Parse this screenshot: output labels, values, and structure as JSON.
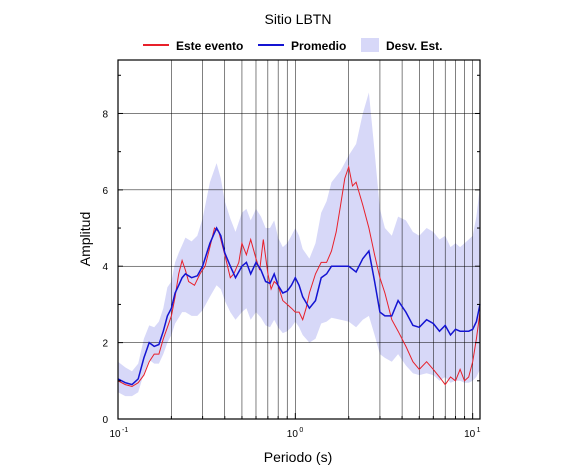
{
  "chart_data": {
    "type": "line",
    "title": "Sitio LBTN",
    "xlabel": "Periodo (s)",
    "ylabel": "Amplitud",
    "x_scale": "log",
    "xlim": [
      0.1,
      11
    ],
    "ylim": [
      0,
      9.4
    ],
    "grid": true,
    "legend_position": "top",
    "x_ticks": [
      {
        "base": "10",
        "exp": "-1"
      },
      {
        "base": "10",
        "exp": "0"
      },
      {
        "base": "10",
        "exp": "1"
      }
    ],
    "y_ticks": [
      "0",
      "2",
      "4",
      "6",
      "8"
    ],
    "series": [
      {
        "name": "Este evento",
        "color": "#e8202a",
        "points": [
          [
            0.1,
            1.0
          ],
          [
            0.11,
            0.9
          ],
          [
            0.12,
            0.85
          ],
          [
            0.13,
            0.95
          ],
          [
            0.14,
            1.15
          ],
          [
            0.15,
            1.5
          ],
          [
            0.16,
            1.7
          ],
          [
            0.17,
            1.7
          ],
          [
            0.18,
            2.1
          ],
          [
            0.19,
            2.4
          ],
          [
            0.2,
            2.7
          ],
          [
            0.21,
            3.2
          ],
          [
            0.22,
            3.8
          ],
          [
            0.23,
            4.15
          ],
          [
            0.24,
            3.9
          ],
          [
            0.25,
            3.6
          ],
          [
            0.27,
            3.5
          ],
          [
            0.29,
            3.8
          ],
          [
            0.31,
            4.0
          ],
          [
            0.33,
            4.5
          ],
          [
            0.35,
            5.0
          ],
          [
            0.37,
            4.9
          ],
          [
            0.4,
            4.3
          ],
          [
            0.43,
            3.7
          ],
          [
            0.45,
            3.8
          ],
          [
            0.48,
            4.1
          ],
          [
            0.5,
            4.6
          ],
          [
            0.53,
            4.3
          ],
          [
            0.56,
            4.7
          ],
          [
            0.6,
            4.2
          ],
          [
            0.63,
            3.9
          ],
          [
            0.66,
            4.7
          ],
          [
            0.7,
            3.8
          ],
          [
            0.73,
            3.4
          ],
          [
            0.76,
            3.6
          ],
          [
            0.8,
            3.5
          ],
          [
            0.85,
            3.1
          ],
          [
            0.9,
            3.0
          ],
          [
            0.95,
            2.9
          ],
          [
            1.0,
            2.8
          ],
          [
            1.05,
            2.8
          ],
          [
            1.1,
            2.6
          ],
          [
            1.15,
            2.9
          ],
          [
            1.2,
            3.3
          ],
          [
            1.3,
            3.8
          ],
          [
            1.4,
            4.1
          ],
          [
            1.5,
            4.1
          ],
          [
            1.6,
            4.4
          ],
          [
            1.7,
            4.9
          ],
          [
            1.8,
            5.6
          ],
          [
            1.9,
            6.3
          ],
          [
            2.0,
            6.6
          ],
          [
            2.1,
            6.1
          ],
          [
            2.2,
            6.2
          ],
          [
            2.4,
            5.6
          ],
          [
            2.6,
            5.0
          ],
          [
            2.8,
            4.3
          ],
          [
            3.0,
            3.7
          ],
          [
            3.2,
            3.3
          ],
          [
            3.5,
            2.6
          ],
          [
            3.8,
            2.3
          ],
          [
            4.2,
            1.9
          ],
          [
            4.6,
            1.5
          ],
          [
            5.0,
            1.3
          ],
          [
            5.5,
            1.5
          ],
          [
            6.0,
            1.3
          ],
          [
            6.5,
            1.1
          ],
          [
            7.0,
            0.9
          ],
          [
            7.5,
            1.1
          ],
          [
            8.0,
            1.0
          ],
          [
            8.5,
            1.3
          ],
          [
            9.0,
            1.0
          ],
          [
            9.5,
            1.1
          ],
          [
            10.0,
            1.5
          ],
          [
            10.5,
            2.1
          ],
          [
            11.0,
            2.8
          ]
        ]
      },
      {
        "name": "Promedio",
        "color": "#1414d2",
        "points": [
          [
            0.1,
            1.05
          ],
          [
            0.11,
            0.95
          ],
          [
            0.12,
            0.9
          ],
          [
            0.13,
            1.05
          ],
          [
            0.14,
            1.6
          ],
          [
            0.15,
            2.0
          ],
          [
            0.16,
            1.9
          ],
          [
            0.17,
            1.95
          ],
          [
            0.18,
            2.3
          ],
          [
            0.19,
            2.7
          ],
          [
            0.2,
            2.9
          ],
          [
            0.21,
            3.3
          ],
          [
            0.22,
            3.5
          ],
          [
            0.23,
            3.7
          ],
          [
            0.24,
            3.8
          ],
          [
            0.26,
            3.7
          ],
          [
            0.28,
            3.75
          ],
          [
            0.3,
            4.0
          ],
          [
            0.33,
            4.6
          ],
          [
            0.36,
            5.0
          ],
          [
            0.38,
            4.8
          ],
          [
            0.4,
            4.35
          ],
          [
            0.43,
            4.0
          ],
          [
            0.46,
            3.7
          ],
          [
            0.5,
            4.0
          ],
          [
            0.53,
            4.1
          ],
          [
            0.56,
            3.8
          ],
          [
            0.6,
            4.1
          ],
          [
            0.64,
            3.9
          ],
          [
            0.68,
            3.6
          ],
          [
            0.72,
            3.55
          ],
          [
            0.76,
            3.8
          ],
          [
            0.8,
            3.5
          ],
          [
            0.85,
            3.3
          ],
          [
            0.9,
            3.35
          ],
          [
            0.95,
            3.5
          ],
          [
            1.0,
            3.7
          ],
          [
            1.05,
            3.5
          ],
          [
            1.1,
            3.2
          ],
          [
            1.2,
            2.9
          ],
          [
            1.3,
            3.1
          ],
          [
            1.4,
            3.7
          ],
          [
            1.5,
            3.8
          ],
          [
            1.6,
            4.0
          ],
          [
            1.8,
            4.0
          ],
          [
            2.0,
            4.0
          ],
          [
            2.2,
            3.85
          ],
          [
            2.4,
            4.2
          ],
          [
            2.6,
            4.4
          ],
          [
            2.8,
            3.6
          ],
          [
            3.0,
            2.8
          ],
          [
            3.2,
            2.7
          ],
          [
            3.5,
            2.7
          ],
          [
            3.8,
            3.1
          ],
          [
            4.2,
            2.8
          ],
          [
            4.6,
            2.45
          ],
          [
            5.0,
            2.4
          ],
          [
            5.5,
            2.6
          ],
          [
            6.0,
            2.5
          ],
          [
            6.5,
            2.3
          ],
          [
            7.0,
            2.45
          ],
          [
            7.5,
            2.2
          ],
          [
            8.0,
            2.35
          ],
          [
            8.5,
            2.3
          ],
          [
            9.0,
            2.3
          ],
          [
            9.5,
            2.3
          ],
          [
            10.0,
            2.35
          ],
          [
            10.5,
            2.55
          ],
          [
            11.0,
            3.0
          ]
        ]
      }
    ],
    "band": {
      "name": "Desv. Est.",
      "color": "#d7d8f8",
      "points": [
        [
          0.1,
          0.7,
          1.5
        ],
        [
          0.11,
          0.6,
          1.35
        ],
        [
          0.12,
          0.6,
          1.25
        ],
        [
          0.13,
          0.7,
          1.45
        ],
        [
          0.14,
          1.2,
          2.1
        ],
        [
          0.15,
          1.55,
          2.45
        ],
        [
          0.16,
          1.45,
          2.4
        ],
        [
          0.17,
          1.45,
          2.55
        ],
        [
          0.18,
          1.7,
          2.9
        ],
        [
          0.19,
          2.0,
          3.45
        ],
        [
          0.2,
          2.2,
          3.6
        ],
        [
          0.21,
          2.5,
          4.1
        ],
        [
          0.22,
          2.65,
          4.35
        ],
        [
          0.23,
          2.8,
          4.55
        ],
        [
          0.24,
          2.8,
          4.75
        ],
        [
          0.26,
          2.7,
          4.65
        ],
        [
          0.28,
          2.7,
          4.8
        ],
        [
          0.3,
          2.85,
          5.25
        ],
        [
          0.33,
          3.2,
          6.2
        ],
        [
          0.36,
          3.5,
          6.7
        ],
        [
          0.38,
          3.4,
          6.3
        ],
        [
          0.4,
          3.1,
          5.7
        ],
        [
          0.43,
          2.8,
          5.25
        ],
        [
          0.46,
          2.6,
          4.9
        ],
        [
          0.5,
          2.8,
          5.4
        ],
        [
          0.53,
          2.9,
          5.5
        ],
        [
          0.56,
          2.6,
          5.2
        ],
        [
          0.6,
          2.8,
          5.5
        ],
        [
          0.64,
          2.65,
          5.3
        ],
        [
          0.68,
          2.45,
          5.0
        ],
        [
          0.72,
          2.4,
          5.0
        ],
        [
          0.76,
          2.6,
          5.2
        ],
        [
          0.8,
          2.4,
          4.75
        ],
        [
          0.85,
          2.25,
          4.5
        ],
        [
          0.9,
          2.3,
          4.6
        ],
        [
          0.95,
          2.4,
          4.8
        ],
        [
          1.0,
          2.55,
          5.0
        ],
        [
          1.05,
          2.4,
          4.8
        ],
        [
          1.1,
          2.2,
          4.45
        ],
        [
          1.2,
          2.0,
          4.2
        ],
        [
          1.3,
          2.1,
          4.6
        ],
        [
          1.4,
          2.5,
          5.4
        ],
        [
          1.5,
          2.55,
          5.7
        ],
        [
          1.6,
          2.65,
          6.2
        ],
        [
          1.8,
          2.6,
          6.5
        ],
        [
          2.0,
          2.55,
          6.9
        ],
        [
          2.2,
          2.4,
          7.2
        ],
        [
          2.4,
          2.6,
          8.0
        ],
        [
          2.6,
          2.7,
          8.55
        ],
        [
          2.8,
          2.2,
          7.0
        ],
        [
          3.0,
          1.7,
          5.5
        ],
        [
          3.2,
          1.6,
          5.0
        ],
        [
          3.5,
          1.5,
          4.8
        ],
        [
          3.8,
          1.7,
          5.3
        ],
        [
          4.2,
          1.4,
          5.2
        ],
        [
          4.6,
          1.2,
          4.9
        ],
        [
          5.0,
          1.15,
          4.8
        ],
        [
          5.5,
          1.2,
          5.0
        ],
        [
          6.0,
          1.15,
          4.9
        ],
        [
          6.5,
          1.0,
          4.7
        ],
        [
          7.0,
          1.1,
          4.8
        ],
        [
          7.5,
          0.95,
          4.5
        ],
        [
          8.0,
          1.0,
          4.6
        ],
        [
          8.5,
          1.0,
          4.5
        ],
        [
          9.0,
          0.95,
          4.6
        ],
        [
          9.5,
          0.95,
          4.7
        ],
        [
          10.0,
          1.0,
          4.8
        ],
        [
          10.5,
          1.1,
          5.3
        ],
        [
          11.0,
          1.3,
          6.1
        ]
      ]
    }
  }
}
